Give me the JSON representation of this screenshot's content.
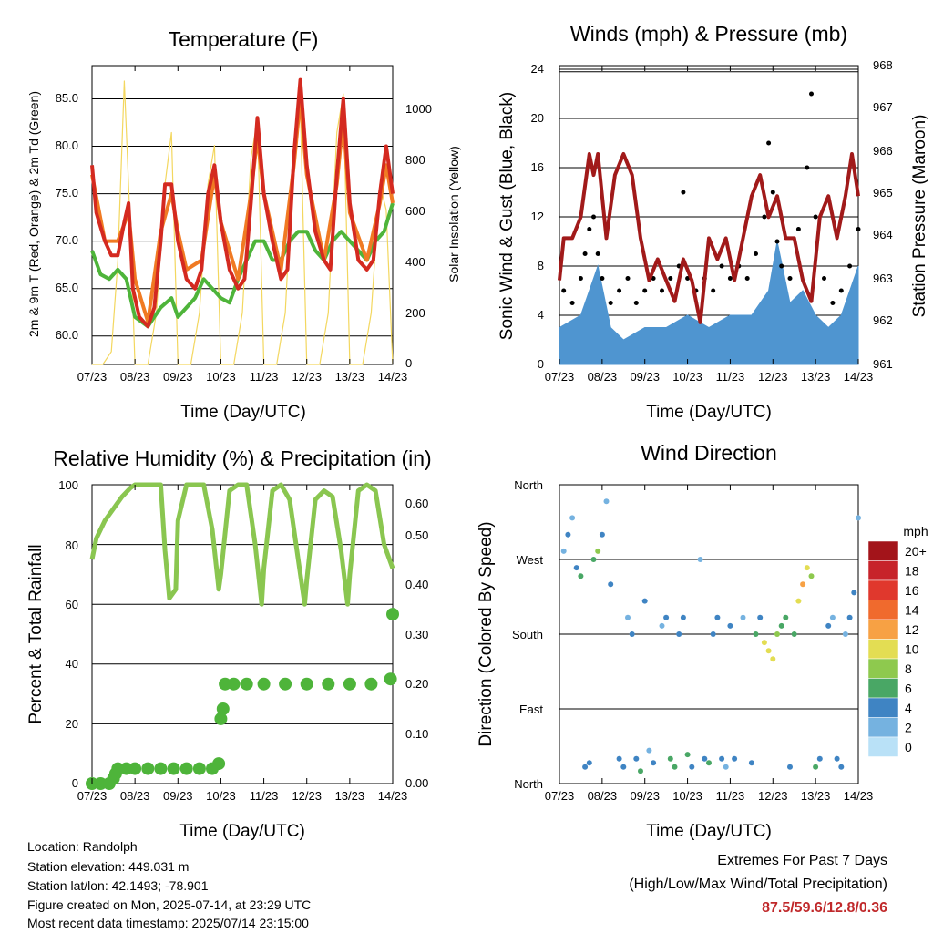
{
  "panels": {
    "temperature": {
      "title": "Temperature (F)",
      "xlabel": "Time (Day/UTC)",
      "ylabel_left": "2m & 9m T (Red, Orange) & 2m Td (Green)",
      "ylabel_right": "Solar Insolation (Yellow)",
      "yticks_left": [
        "60.0",
        "65.0",
        "70.0",
        "75.0",
        "80.0",
        "85.0"
      ],
      "yticks_right": [
        "0",
        "200",
        "400",
        "600",
        "800",
        "1000"
      ]
    },
    "winds": {
      "title": "Winds (mph) & Pressure (mb)",
      "xlabel": "Time (Day/UTC)",
      "ylabel_left": "Sonic Wind & Gust (Blue, Black)",
      "ylabel_right": "Station Pressure (Maroon)",
      "yticks_left": [
        "0",
        "4",
        "8",
        "12",
        "16",
        "20",
        "24"
      ],
      "yticks_right": [
        "961",
        "962",
        "963",
        "964",
        "965",
        "966",
        "967",
        "968"
      ]
    },
    "humidity": {
      "title": "Relative Humidity (%) & Precipitation (in)",
      "xlabel": "Time (Day/UTC)",
      "ylabel_left": "Percent & Total Rainfall",
      "yticks_left": [
        "0",
        "20",
        "40",
        "60",
        "80",
        "100"
      ],
      "yticks_right": [
        "0.00",
        "0.10",
        "0.20",
        "0.30",
        "0.40",
        "0.50",
        "0.60"
      ]
    },
    "direction": {
      "title": "Wind Direction",
      "xlabel": "Time (Day/UTC)",
      "ylabel_left": "Direction (Colored By Speed)",
      "yticks_left": [
        "North",
        "East",
        "South",
        "West",
        "North"
      ],
      "colorbar_title": "mph",
      "colorbar_labels": [
        "20+",
        "18",
        "16",
        "14",
        "12",
        "10",
        "8",
        "6",
        "4",
        "2",
        "0"
      ],
      "colorbar_colors": [
        "#a3141a",
        "#c7232a",
        "#e0382d",
        "#f06a2d",
        "#f7a144",
        "#e3dd53",
        "#8ec94e",
        "#49a765",
        "#3f84c3",
        "#75b2e0",
        "#b9e1f7"
      ]
    }
  },
  "chart_data": [
    {
      "type": "line",
      "title": "Temperature (F)",
      "xlabel": "Time (Day/UTC)",
      "categories": [
        "07/23",
        "08/23",
        "09/23",
        "10/23",
        "11/23",
        "12/23",
        "13/23",
        "14/23"
      ],
      "ylabel": "2m & 9m T (Red, Orange) & 2m Td (Green)",
      "ylim": [
        57,
        88.5
      ],
      "y2label": "Solar Insolation (Yellow)",
      "y2lim": [
        0,
        1160
      ],
      "series": [
        {
          "color": "#d42a20",
          "x": [
            0,
            0.1,
            0.3,
            0.45,
            0.6,
            0.75,
            0.85,
            0.9,
            0.95,
            1.1,
            1.3,
            1.45,
            1.6,
            1.7,
            1.85,
            2.0,
            2.2,
            2.4,
            2.55,
            2.7,
            2.85,
            3.0,
            3.2,
            3.4,
            3.55,
            3.7,
            3.85,
            4.0,
            4.2,
            4.4,
            4.55,
            4.7,
            4.85,
            5.0,
            5.2,
            5.4,
            5.55,
            5.7,
            5.85,
            6.0,
            6.2,
            6.4,
            6.55,
            6.7,
            6.85,
            7.0
          ],
          "values": [
            78,
            73,
            70,
            68.5,
            68.5,
            72,
            74,
            70,
            65,
            62,
            61,
            63,
            70,
            76,
            76,
            70,
            66,
            65,
            67,
            75,
            78,
            72,
            67,
            65,
            66,
            74,
            83,
            75,
            70,
            66,
            67,
            79,
            87,
            78,
            71,
            68,
            67,
            77,
            85,
            74,
            68,
            67,
            68,
            75,
            80,
            75
          ]
        },
        {
          "color": "#f07a23",
          "x": [
            0,
            0.3,
            0.6,
            0.85,
            1.0,
            1.3,
            1.6,
            1.85,
            2.0,
            2.2,
            2.55,
            2.85,
            3.0,
            3.4,
            3.7,
            3.85,
            4.0,
            4.4,
            4.7,
            4.85,
            5.0,
            5.4,
            5.7,
            5.85,
            6.0,
            6.4,
            6.7,
            6.85,
            7.0
          ],
          "values": [
            77,
            70,
            70,
            73,
            66,
            61.5,
            71,
            75,
            71,
            67,
            68,
            77,
            72,
            66,
            75,
            81,
            75,
            67,
            78,
            85,
            77,
            68,
            76,
            83,
            73,
            68,
            74,
            78,
            74
          ]
        },
        {
          "color": "#4eb43a",
          "x": [
            0,
            0.2,
            0.4,
            0.6,
            0.8,
            1.0,
            1.3,
            1.6,
            1.85,
            2.0,
            2.2,
            2.4,
            2.6,
            2.8,
            3.0,
            3.2,
            3.4,
            3.6,
            3.8,
            4.0,
            4.2,
            4.4,
            4.6,
            4.8,
            5.0,
            5.2,
            5.4,
            5.6,
            5.8,
            6.0,
            6.2,
            6.4,
            6.6,
            6.8,
            7.0
          ],
          "values": [
            69,
            66.5,
            66,
            67,
            66,
            62,
            61,
            63,
            64,
            62,
            63,
            64,
            66,
            65,
            64,
            63.5,
            66,
            68,
            70,
            70,
            68,
            68,
            70,
            71,
            71,
            69,
            68,
            70,
            71,
            70,
            69,
            68,
            70,
            71,
            74
          ]
        },
        {
          "color": "#f3d75f",
          "x": [
            0,
            0.25,
            0.45,
            0.6,
            0.75,
            0.9,
            1.0,
            1.3,
            1.5,
            1.7,
            1.85,
            2.0,
            2.3,
            2.5,
            2.7,
            2.85,
            3.0,
            3.3,
            3.5,
            3.7,
            3.85,
            4.0,
            4.3,
            4.5,
            4.7,
            4.85,
            5.0,
            5.3,
            5.5,
            5.7,
            5.85,
            6.0,
            6.3,
            6.5,
            6.7,
            6.85,
            7.0
          ],
          "y2values": [
            0,
            0,
            50,
            400,
            1100,
            500,
            0,
            0,
            200,
            700,
            900,
            0,
            0,
            200,
            700,
            850,
            0,
            0,
            200,
            800,
            950,
            0,
            0,
            200,
            850,
            1000,
            0,
            0,
            200,
            900,
            1050,
            0,
            0,
            200,
            700,
            600,
            0
          ]
        }
      ]
    },
    {
      "type": "scatter",
      "title": "Winds (mph) & Pressure (mb)",
      "xlabel": "Time (Day/UTC)",
      "categories": [
        "07/23",
        "08/23",
        "09/23",
        "10/23",
        "11/23",
        "12/23",
        "13/23",
        "14/23"
      ],
      "ylabel": "Sonic Wind & Gust (Blue, Black)",
      "ylim": [
        0,
        24.3
      ],
      "y2label": "Station Pressure (Maroon)",
      "y2lim": [
        961,
        968.1
      ],
      "series": [
        {
          "color": "#4f95d0",
          "kind": "area",
          "x": [
            0,
            0.5,
            0.7,
            0.9,
            1.2,
            1.5,
            2.0,
            2.5,
            3.0,
            3.5,
            4.0,
            4.5,
            4.9,
            5.1,
            5.4,
            5.7,
            6.0,
            6.3,
            6.6,
            7.0
          ],
          "values": [
            3,
            4,
            6,
            8,
            3,
            2,
            3,
            3,
            4,
            3,
            4,
            4,
            6,
            10,
            5,
            6,
            4,
            3,
            4,
            8
          ]
        },
        {
          "color": "#000000",
          "kind": "points",
          "x": [
            0.1,
            0.3,
            0.5,
            0.6,
            0.7,
            0.8,
            0.9,
            1.0,
            1.2,
            1.4,
            1.6,
            1.8,
            2.0,
            2.2,
            2.4,
            2.6,
            2.8,
            2.9,
            3.0,
            3.2,
            3.4,
            3.6,
            3.8,
            4.0,
            4.2,
            4.4,
            4.6,
            4.8,
            4.9,
            5.0,
            5.1,
            5.2,
            5.4,
            5.6,
            5.8,
            5.9,
            6.0,
            6.2,
            6.4,
            6.6,
            6.8,
            7.0
          ],
          "values": [
            6,
            5,
            7,
            9,
            11,
            12,
            9,
            7,
            5,
            6,
            7,
            5,
            6,
            7,
            6,
            7,
            8,
            14,
            7,
            6,
            7,
            6,
            8,
            7,
            8,
            7,
            9,
            12,
            18,
            14,
            10,
            8,
            7,
            11,
            16,
            22,
            12,
            7,
            5,
            6,
            8,
            11
          ]
        },
        {
          "color": "#a11a1a",
          "kind": "line",
          "x": [
            0,
            0.1,
            0.3,
            0.5,
            0.7,
            0.8,
            0.9,
            1.1,
            1.3,
            1.5,
            1.7,
            1.9,
            2.1,
            2.3,
            2.5,
            2.7,
            2.9,
            3.1,
            3.3,
            3.5,
            3.7,
            3.9,
            4.1,
            4.3,
            4.5,
            4.7,
            4.9,
            5.1,
            5.3,
            5.5,
            5.7,
            5.9,
            6.1,
            6.3,
            6.5,
            6.7,
            6.85,
            7.0
          ],
          "y2values": [
            963,
            964,
            964,
            964.5,
            966,
            965.5,
            966,
            964,
            965.5,
            966,
            965.5,
            964,
            963,
            963.5,
            963,
            962.5,
            963.5,
            963,
            962,
            964,
            963.5,
            964,
            963,
            964,
            965,
            965.5,
            964.5,
            965,
            964,
            964,
            963,
            962.5,
            964.5,
            965,
            964,
            965,
            966,
            965
          ]
        }
      ]
    },
    {
      "type": "line",
      "title": "Relative Humidity (%) & Precipitation (in)",
      "xlabel": "Time (Day/UTC)",
      "categories": [
        "07/23",
        "08/23",
        "09/23",
        "10/23",
        "11/23",
        "12/23",
        "13/23",
        "14/23"
      ],
      "ylabel": "Percent & Total Rainfall",
      "ylim": [
        0,
        100
      ],
      "y2lim": [
        0,
        0.6
      ],
      "series": [
        {
          "color": "#8ac650",
          "kind": "line",
          "x": [
            0,
            0.1,
            0.3,
            0.5,
            0.7,
            0.9,
            1.0,
            1.3,
            1.6,
            1.7,
            1.8,
            1.95,
            2.0,
            2.2,
            2.4,
            2.6,
            2.8,
            2.95,
            3.0,
            3.2,
            3.4,
            3.6,
            3.8,
            3.95,
            4.0,
            4.2,
            4.4,
            4.6,
            4.8,
            4.95,
            5.0,
            5.2,
            5.4,
            5.6,
            5.8,
            5.95,
            6.0,
            6.2,
            6.4,
            6.6,
            6.8,
            7.0
          ],
          "values": [
            75,
            82,
            88,
            92,
            96,
            99,
            100,
            100,
            100,
            78,
            62,
            65,
            88,
            100,
            100,
            100,
            85,
            65,
            70,
            98,
            100,
            100,
            80,
            60,
            72,
            98,
            100,
            95,
            75,
            60,
            68,
            95,
            98,
            96,
            78,
            60,
            70,
            98,
            100,
            98,
            80,
            72
          ]
        },
        {
          "color": "#4eb43a",
          "kind": "points",
          "x": [
            0,
            0.2,
            0.4,
            0.5,
            0.55,
            0.6,
            0.8,
            1.0,
            1.3,
            1.6,
            1.9,
            2.2,
            2.5,
            2.8,
            2.95,
            3.0,
            3.05,
            3.1,
            3.3,
            3.6,
            4.0,
            4.5,
            5.0,
            5.5,
            6.0,
            6.5,
            6.95,
            7.0
          ],
          "y2values": [
            0,
            0,
            0,
            0.01,
            0.02,
            0.03,
            0.03,
            0.03,
            0.03,
            0.03,
            0.03,
            0.03,
            0.03,
            0.03,
            0.04,
            0.13,
            0.15,
            0.2,
            0.2,
            0.2,
            0.2,
            0.2,
            0.2,
            0.2,
            0.2,
            0.2,
            0.21,
            0.34
          ]
        }
      ]
    },
    {
      "type": "scatter",
      "title": "Wind Direction",
      "xlabel": "Time (Day/UTC)",
      "categories": [
        "07/23",
        "08/23",
        "09/23",
        "10/23",
        "11/23",
        "12/23",
        "13/23",
        "14/23"
      ],
      "ylabel": "Direction (Colored By Speed)",
      "yticks": [
        "North",
        "East",
        "South",
        "West",
        "North"
      ],
      "ylim": [
        0,
        360
      ],
      "series": [
        {
          "kind": "points",
          "x": [
            0.1,
            0.2,
            0.3,
            0.4,
            0.5,
            0.6,
            0.7,
            0.8,
            0.9,
            1.0,
            1.1,
            1.2,
            1.4,
            1.5,
            1.6,
            1.7,
            1.8,
            1.9,
            2.0,
            2.1,
            2.2,
            2.4,
            2.5,
            2.6,
            2.7,
            2.8,
            2.9,
            3.0,
            3.1,
            3.3,
            3.4,
            3.5,
            3.6,
            3.7,
            3.8,
            3.9,
            4.0,
            4.1,
            4.3,
            4.5,
            4.6,
            4.7,
            4.8,
            4.9,
            5.0,
            5.1,
            5.2,
            5.3,
            5.4,
            5.5,
            5.6,
            5.7,
            5.8,
            5.9,
            6.0,
            6.1,
            6.3,
            6.4,
            6.5,
            6.6,
            6.7,
            6.8,
            6.9,
            7.0
          ],
          "values": [
            280,
            300,
            320,
            260,
            250,
            20,
            25,
            270,
            280,
            300,
            340,
            240,
            30,
            20,
            200,
            180,
            30,
            15,
            220,
            40,
            25,
            190,
            200,
            30,
            20,
            180,
            200,
            35,
            20,
            270,
            30,
            25,
            180,
            200,
            30,
            20,
            190,
            30,
            200,
            25,
            180,
            200,
            170,
            160,
            150,
            180,
            190,
            200,
            20,
            180,
            220,
            240,
            260,
            250,
            20,
            30,
            190,
            200,
            30,
            20,
            180,
            200,
            230,
            320
          ],
          "speeds": [
            3,
            4,
            2,
            5,
            6,
            4,
            5,
            7,
            8,
            4,
            3,
            5,
            4,
            5,
            3,
            4,
            5,
            6,
            4,
            3,
            4,
            3,
            5,
            6,
            7,
            4,
            5,
            6,
            5,
            3,
            4,
            6,
            5,
            4,
            5,
            3,
            4,
            5,
            3,
            4,
            6,
            5,
            10,
            11,
            10,
            9,
            7,
            6,
            5,
            7,
            11,
            12,
            10,
            8,
            6,
            5,
            4,
            3,
            5,
            4,
            3,
            5,
            4,
            3
          ]
        }
      ]
    }
  ],
  "info": {
    "location": "Location: Randolph",
    "elevation": "Station elevation: 449.031 m",
    "latlon": "Station lat/lon: 42.1493; -78.901",
    "created": "Figure created on Mon, 2025-07-14, at 23:29 UTC",
    "timestamp": "Most recent data timestamp: 2025/07/14 23:15:00"
  },
  "extremes": {
    "label1": "Extremes For Past 7 Days",
    "label2": "(High/Low/Max Wind/Total Precipitation)",
    "values": "87.5/59.6/12.8/0.36"
  }
}
